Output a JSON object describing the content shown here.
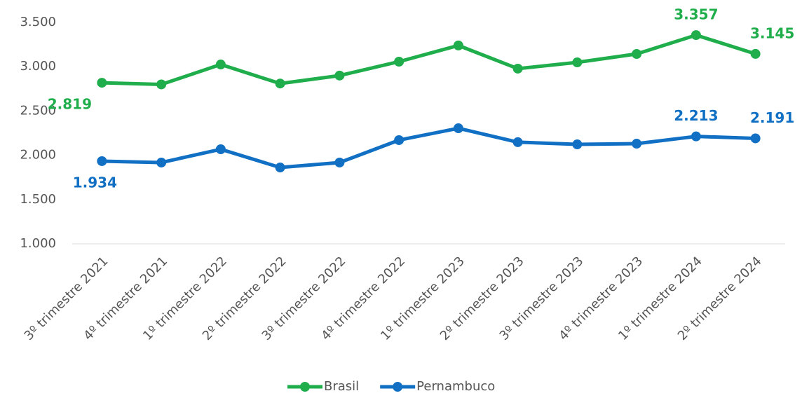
{
  "chart_data": {
    "type": "line",
    "categories": [
      "3º trimestre 2021",
      "4º trimestre 2021",
      "1º trimestre 2022",
      "2º trimestre 2022",
      "3º trimestre 2022",
      "4º trimestre 2022",
      "1º trimestre 2023",
      "2º trimestre 2023",
      "3º trimestre 2023",
      "4º trimestre 2023",
      "1º trimestre 2024",
      "2º trimestre 2024"
    ],
    "series": [
      {
        "name": "Brasil",
        "color": "#1fae4b",
        "values": [
          2819,
          2800,
          3025,
          2810,
          2900,
          3057,
          3240,
          2978,
          3049,
          3144,
          3357,
          3145
        ],
        "value_labels": [
          "2.819",
          null,
          null,
          null,
          null,
          null,
          null,
          null,
          null,
          null,
          "3.357",
          "3.145"
        ]
      },
      {
        "name": "Pernambuco",
        "color": "#1170c4",
        "values": [
          1934,
          1918,
          2068,
          1862,
          1918,
          2171,
          2305,
          2148,
          2123,
          2131,
          2213,
          2191
        ],
        "value_labels": [
          "1.934",
          null,
          null,
          null,
          null,
          null,
          null,
          null,
          null,
          null,
          "2.213",
          "2.191"
        ]
      }
    ],
    "ylim": [
      1000,
      3500
    ],
    "yticks": [
      {
        "value": 1000,
        "label": "1.000"
      },
      {
        "value": 1500,
        "label": "1.500"
      },
      {
        "value": 2000,
        "label": "2.000"
      },
      {
        "value": 2500,
        "label": "2.500"
      },
      {
        "value": 3000,
        "label": "3.000"
      },
      {
        "value": 3500,
        "label": "3.500"
      }
    ],
    "grid": false,
    "legend": "bottom"
  }
}
